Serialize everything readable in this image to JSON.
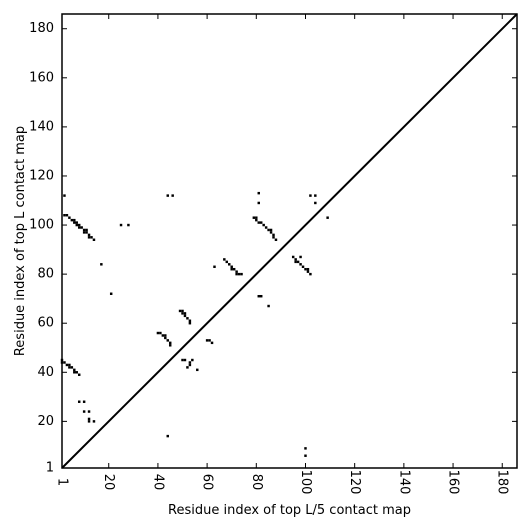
{
  "chart_data": {
    "type": "scatter",
    "title": "",
    "xlabel": "Residue index of top L/5 contact map",
    "ylabel": "Residue index of top L contact map",
    "xlim": [
      1,
      186
    ],
    "ylim": [
      1,
      186
    ],
    "x_ticks": [
      1,
      20,
      40,
      60,
      80,
      100,
      120,
      140,
      160,
      180
    ],
    "x_tick_labels": [
      "1",
      "20",
      "40",
      "60",
      "80",
      "100",
      "120",
      "140",
      "160",
      "180"
    ],
    "y_ticks": [
      1,
      20,
      40,
      60,
      80,
      100,
      120,
      140,
      160,
      180
    ],
    "y_tick_labels": [
      "1",
      "20",
      "40",
      "60",
      "80",
      "100",
      "120",
      "140",
      "160",
      "180"
    ],
    "grid": false,
    "legend": "none",
    "diagonal_line": true,
    "colors": {
      "marks": "#000000",
      "frame": "#000000"
    },
    "series": [
      {
        "values": [
          [
            2,
            112
          ],
          [
            2,
            104
          ],
          [
            3,
            104
          ],
          [
            4,
            103
          ],
          [
            5,
            102
          ],
          [
            6,
            102
          ],
          [
            6,
            101
          ],
          [
            7,
            101
          ],
          [
            7,
            100
          ],
          [
            8,
            100
          ],
          [
            8,
            99
          ],
          [
            9,
            99
          ],
          [
            10,
            98
          ],
          [
            10,
            97
          ],
          [
            11,
            98
          ],
          [
            11,
            97
          ],
          [
            12,
            96
          ],
          [
            12,
            95
          ],
          [
            13,
            95
          ],
          [
            14,
            94
          ],
          [
            25,
            100
          ],
          [
            28,
            100
          ],
          [
            17,
            84
          ],
          [
            21,
            72
          ],
          [
            1,
            45
          ],
          [
            1,
            44
          ],
          [
            2,
            44
          ],
          [
            3,
            43
          ],
          [
            4,
            43
          ],
          [
            4,
            42
          ],
          [
            5,
            42
          ],
          [
            6,
            41
          ],
          [
            6,
            40
          ],
          [
            7,
            40
          ],
          [
            8,
            39
          ],
          [
            8,
            28
          ],
          [
            10,
            28
          ],
          [
            10,
            24
          ],
          [
            12,
            24
          ],
          [
            12,
            21
          ],
          [
            12,
            20
          ],
          [
            14,
            20
          ],
          [
            40,
            56
          ],
          [
            41,
            56
          ],
          [
            42,
            55
          ],
          [
            43,
            55
          ],
          [
            43,
            54
          ],
          [
            44,
            53
          ],
          [
            45,
            52
          ],
          [
            45,
            51
          ],
          [
            44,
            112
          ],
          [
            46,
            112
          ],
          [
            44,
            14
          ],
          [
            49,
            65
          ],
          [
            50,
            65
          ],
          [
            50,
            64
          ],
          [
            51,
            64
          ],
          [
            51,
            63
          ],
          [
            52,
            62
          ],
          [
            53,
            61
          ],
          [
            53,
            60
          ],
          [
            50,
            45
          ],
          [
            51,
            45
          ],
          [
            53,
            44
          ],
          [
            54,
            45
          ],
          [
            53,
            43
          ],
          [
            52,
            42
          ],
          [
            56,
            41
          ],
          [
            60,
            53
          ],
          [
            61,
            53
          ],
          [
            62,
            52
          ],
          [
            63,
            83
          ],
          [
            67,
            86
          ],
          [
            68,
            85
          ],
          [
            69,
            84
          ],
          [
            70,
            83
          ],
          [
            70,
            82
          ],
          [
            71,
            82
          ],
          [
            72,
            81
          ],
          [
            72,
            80
          ],
          [
            73,
            80
          ],
          [
            74,
            80
          ],
          [
            79,
            103
          ],
          [
            80,
            103
          ],
          [
            80,
            102
          ],
          [
            81,
            101
          ],
          [
            82,
            101
          ],
          [
            83,
            100
          ],
          [
            84,
            99
          ],
          [
            85,
            98
          ],
          [
            86,
            98
          ],
          [
            86,
            97
          ],
          [
            87,
            96
          ],
          [
            87,
            95
          ],
          [
            88,
            94
          ],
          [
            81,
            109
          ],
          [
            81,
            113
          ],
          [
            81,
            71
          ],
          [
            82,
            71
          ],
          [
            85,
            67
          ],
          [
            95,
            87
          ],
          [
            96,
            86
          ],
          [
            96,
            85
          ],
          [
            97,
            85
          ],
          [
            98,
            84
          ],
          [
            99,
            83
          ],
          [
            100,
            82
          ],
          [
            101,
            82
          ],
          [
            101,
            81
          ],
          [
            102,
            80
          ],
          [
            98,
            87
          ],
          [
            102,
            112
          ],
          [
            104,
            112
          ],
          [
            104,
            109
          ],
          [
            109,
            103
          ],
          [
            100,
            9
          ],
          [
            100,
            6
          ]
        ]
      }
    ]
  }
}
